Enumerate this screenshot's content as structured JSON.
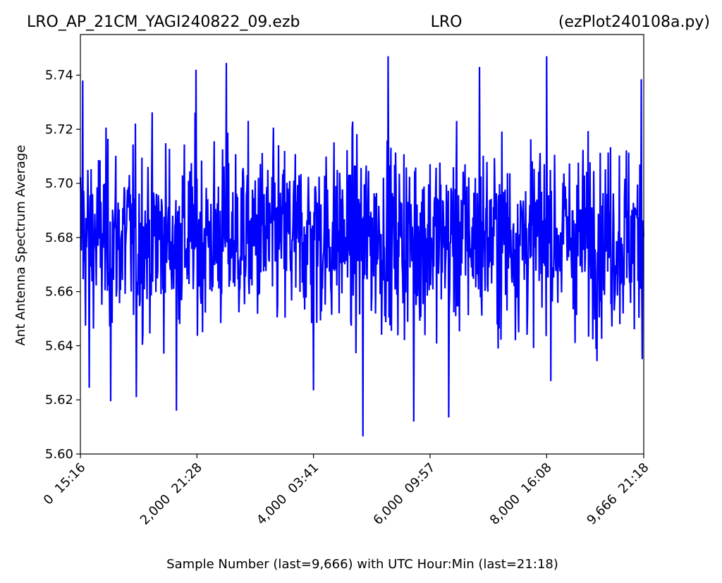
{
  "header": {
    "left": "LRO_AP_21CM_YAGI240822_09.ezb",
    "center": "LRO",
    "right": "(ezPlot240108a.py)"
  },
  "chart_data": {
    "type": "line",
    "xlabel": "Sample Number (last=9,666) with UTC Hour:Min (last=21:18)",
    "ylabel": "Ant Antenna Spectrum Average",
    "xlim": [
      0,
      9666
    ],
    "ylim": [
      5.6,
      5.755
    ],
    "grid": false,
    "line_color": "#0000ff",
    "y_ticks": [
      5.6,
      5.62,
      5.64,
      5.66,
      5.68,
      5.7,
      5.72,
      5.74
    ],
    "y_tick_labels": [
      "5.60",
      "5.62",
      "5.64",
      "5.66",
      "5.68",
      "5.70",
      "5.72",
      "5.74"
    ],
    "x_ticks": [
      0,
      2000,
      4000,
      6000,
      8000,
      9666
    ],
    "x_tick_labels": [
      "0  15:16",
      "2,000  21:28",
      "4,000  03:41",
      "6,000  09:57",
      "8,000  16:08",
      "9,666  21:18"
    ],
    "series": [
      {
        "n_samples": 9667,
        "mean": 5.68,
        "band_low": 5.645,
        "band_high": 5.712,
        "notable_points": [
          {
            "x": 40,
            "y": 5.738
          },
          {
            "x": 150,
            "y": 5.6245
          },
          {
            "x": 520,
            "y": 5.6195
          },
          {
            "x": 960,
            "y": 5.621
          },
          {
            "x": 1650,
            "y": 5.616
          },
          {
            "x": 1980,
            "y": 5.742
          },
          {
            "x": 2500,
            "y": 5.7445
          },
          {
            "x": 4000,
            "y": 5.6235
          },
          {
            "x": 4850,
            "y": 5.6065
          },
          {
            "x": 5280,
            "y": 5.747
          },
          {
            "x": 5720,
            "y": 5.612
          },
          {
            "x": 6320,
            "y": 5.6135
          },
          {
            "x": 6850,
            "y": 5.743
          },
          {
            "x": 8000,
            "y": 5.747
          },
          {
            "x": 9620,
            "y": 5.7385
          }
        ]
      }
    ]
  }
}
